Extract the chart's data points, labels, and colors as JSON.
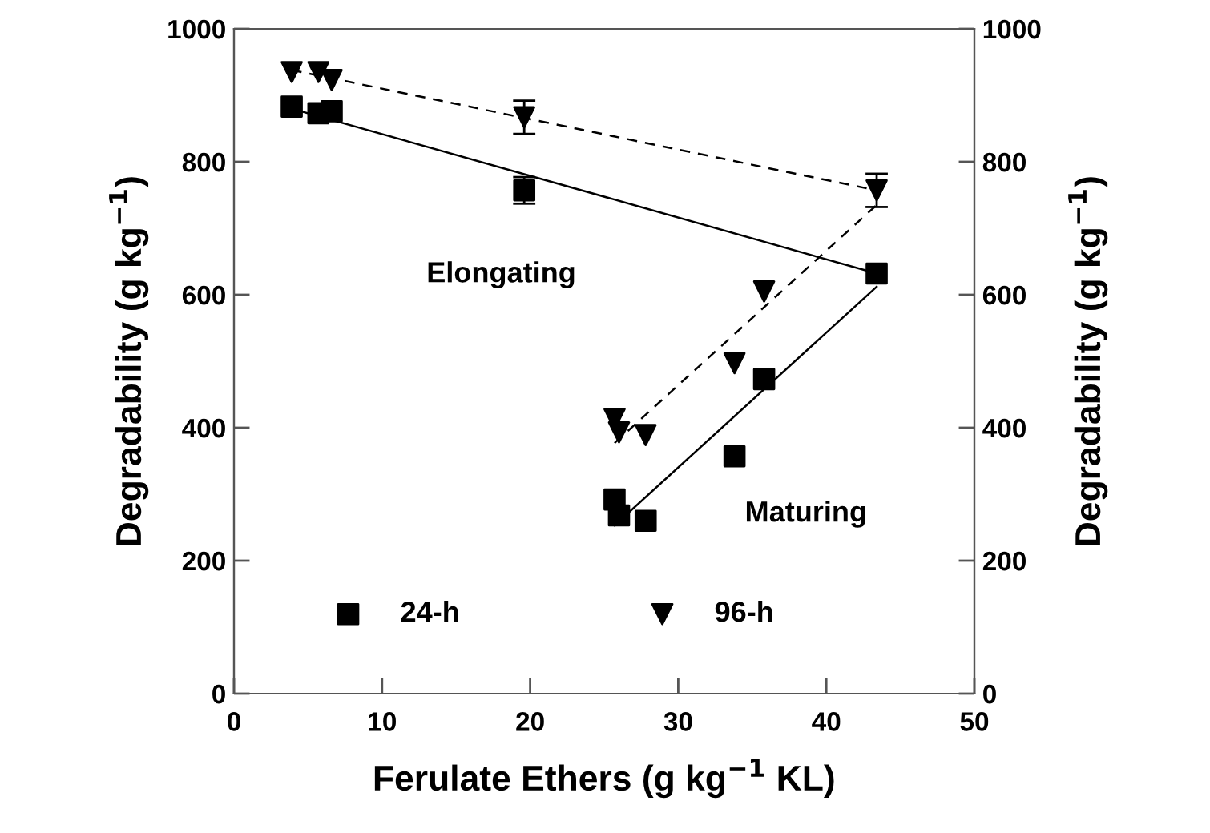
{
  "chart_data": {
    "type": "scatter",
    "xlabel": "Ferulate Ethers (g kg$^{−1}$ KL)",
    "ylabel": "Degradability (g kg$^{−1}$)",
    "y2label": "Degradability (g kg$^{−1}$)",
    "xlim": [
      0,
      50
    ],
    "xticks": [
      0,
      10,
      20,
      30,
      40,
      50
    ],
    "ylim": [
      0,
      1000
    ],
    "yticks": [
      0,
      200,
      400,
      600,
      800,
      1000
    ],
    "y2lim": [
      0,
      1000
    ],
    "y2ticks": [
      0,
      200,
      400,
      600,
      800,
      1000
    ],
    "grid": false,
    "legend": "bottom left",
    "annotations": [
      "Elongating",
      "Maturing"
    ],
    "series": [
      {
        "name": "24-h",
        "marker": "square",
        "color": "#000000",
        "x": [
          3.9,
          5.7,
          6.6,
          19.6,
          43.4,
          25.7,
          26.0,
          27.8,
          33.8,
          35.8
        ],
        "values": [
          883,
          873,
          876,
          757,
          632,
          292,
          268,
          260,
          357,
          473
        ],
        "errors": [
          null,
          null,
          null,
          20,
          null,
          null,
          null,
          null,
          null,
          null
        ]
      },
      {
        "name": "96-h",
        "marker": "triangle",
        "color": "#000000",
        "x": [
          3.9,
          5.7,
          6.6,
          19.6,
          43.4,
          25.7,
          26.0,
          27.8,
          33.8,
          35.8
        ],
        "values": [
          935,
          935,
          923,
          867,
          757,
          413,
          393,
          389,
          497,
          605
        ],
        "errors": [
          null,
          null,
          null,
          25,
          25,
          null,
          null,
          null,
          null,
          null
        ]
      },
      {
        "type": "line",
        "line_style": "solid",
        "color": "#000000",
        "x": [
          3.9,
          43.4
        ],
        "values": [
          880,
          632
        ]
      },
      {
        "type": "line",
        "line_style": "dashed",
        "color": "#000000",
        "x": [
          3.9,
          43.4
        ],
        "values": [
          938,
          757
        ]
      },
      {
        "type": "line",
        "line_style": "solid",
        "color": "#000000",
        "x": [
          25.7,
          43.4
        ],
        "values": [
          253,
          612
        ]
      },
      {
        "type": "line",
        "line_style": "dashed",
        "color": "#000000",
        "x": [
          25.7,
          43.4
        ],
        "values": [
          377,
          735
        ]
      }
    ]
  }
}
